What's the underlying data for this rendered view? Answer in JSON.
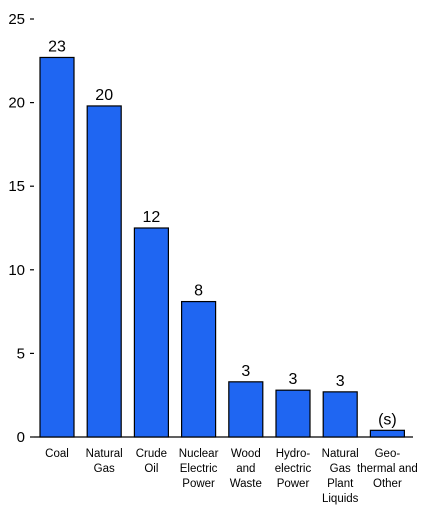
{
  "chart_data": {
    "type": "bar",
    "categories": [
      "Coal",
      "Natural\nGas",
      "Crude\nOil",
      "Nuclear\nElectric\nPower",
      "Wood\nand\nWaste",
      "Hydro-\nelectric\nPower",
      "Natural\nGas\nPlant\nLiquids",
      "Geo-\nthermal and\nOther"
    ],
    "values": [
      22.7,
      19.8,
      12.5,
      8.1,
      3.3,
      2.8,
      2.7,
      0.4
    ],
    "data_labels": [
      "23",
      "20",
      "12",
      "8",
      "3",
      "3",
      "3",
      "(s)"
    ],
    "title": "",
    "xlabel": "",
    "ylabel": "",
    "ylim": [
      0,
      25
    ],
    "yticks": [
      0,
      5,
      10,
      15,
      20,
      25
    ],
    "grid": false,
    "bar_color": "#1f66f2",
    "bar_stroke": "#000000"
  }
}
